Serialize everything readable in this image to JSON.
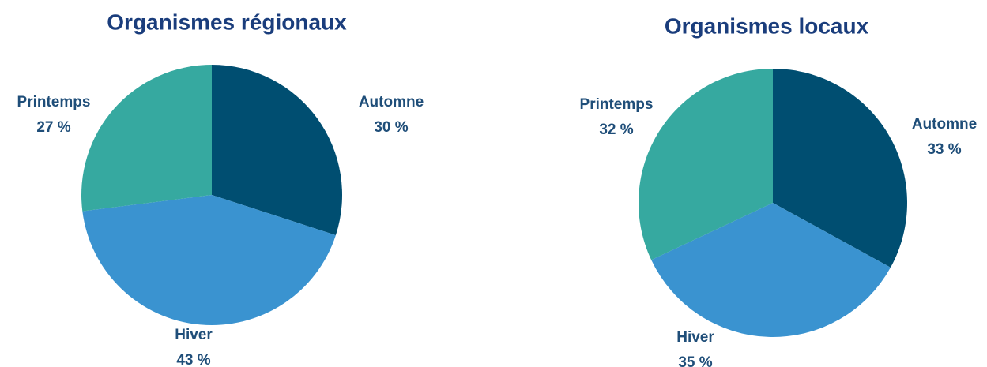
{
  "chart_data": [
    {
      "type": "pie",
      "title": "Organismes régionaux",
      "categories": [
        "Automne",
        "Hiver",
        "Printemps"
      ],
      "values": [
        30,
        43,
        27
      ],
      "value_labels": [
        "30 %",
        "43 %",
        "27 %"
      ],
      "colors": [
        "#004e71",
        "#3a93d0",
        "#36a9a0"
      ]
    },
    {
      "type": "pie",
      "title": "Organismes locaux",
      "categories": [
        "Automne",
        "Hiver",
        "Printemps"
      ],
      "values": [
        33,
        35,
        32
      ],
      "value_labels": [
        "33 %",
        "35 %",
        "32 %"
      ],
      "colors": [
        "#004e71",
        "#3a93d0",
        "#36a9a0"
      ]
    }
  ]
}
